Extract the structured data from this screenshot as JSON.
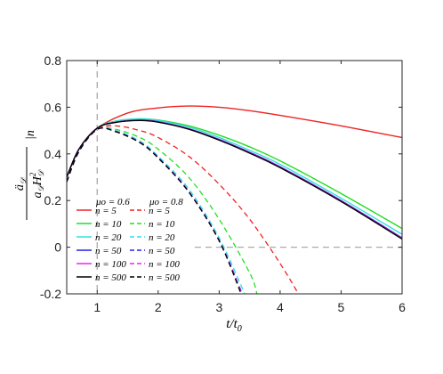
{
  "chart_data": {
    "type": "line",
    "xlabel": "t/t0",
    "ylabel": "ä_D / (a_D H_D²) |n",
    "xlim": [
      0.5,
      6
    ],
    "ylim": [
      -0.2,
      0.8
    ],
    "xticks": [
      1,
      2,
      3,
      4,
      5,
      6
    ],
    "xtick_labels": [
      "1",
      "2",
      "3",
      "4",
      "5",
      "6"
    ],
    "yticks": [
      -0.2,
      0,
      0.2,
      0.4,
      0.6,
      0.8
    ],
    "ytick_labels": [
      "-0.2",
      "0",
      "0.2",
      "0.4",
      "0.6",
      "0.8"
    ],
    "grid": false,
    "legend_position": "bottom-left",
    "legend_group_titles": [
      "μo = 0.6",
      "μo = 0.8"
    ],
    "reference_lines": [
      {
        "orientation": "vertical",
        "x": 1,
        "style": "dashed",
        "color": "#aaaaaa"
      },
      {
        "orientation": "horizontal",
        "y": 0,
        "x_from": 2.6,
        "x_to": 6,
        "style": "dashed",
        "color": "#aaaaaa"
      }
    ],
    "series": [
      {
        "name": "n = 5",
        "group": "μo = 0.6",
        "color": "#ee2222",
        "dash": "solid",
        "x": [
          0.5,
          0.7,
          1.0,
          1.5,
          2.0,
          2.5,
          3.0,
          3.5,
          4.0,
          5.0,
          6.0
        ],
        "y": [
          0.3,
          0.42,
          0.51,
          0.575,
          0.597,
          0.605,
          0.6,
          0.585,
          0.565,
          0.52,
          0.47
        ]
      },
      {
        "name": "n = 10",
        "group": "μo = 0.6",
        "color": "#22dd22",
        "dash": "solid",
        "x": [
          0.5,
          0.7,
          1.0,
          1.3,
          1.7,
          2.0,
          2.5,
          3.0,
          3.5,
          4.0,
          5.0,
          6.0
        ],
        "y": [
          0.3,
          0.42,
          0.51,
          0.54,
          0.55,
          0.545,
          0.52,
          0.48,
          0.43,
          0.37,
          0.23,
          0.08
        ]
      },
      {
        "name": "n = 20",
        "group": "μo = 0.6",
        "color": "#33dddd",
        "dash": "solid",
        "x": [
          0.5,
          0.7,
          1.0,
          1.3,
          1.7,
          2.0,
          2.5,
          3.0,
          3.5,
          4.0,
          5.0,
          6.0
        ],
        "y": [
          0.3,
          0.42,
          0.51,
          0.54,
          0.55,
          0.543,
          0.515,
          0.47,
          0.415,
          0.355,
          0.21,
          0.055
        ]
      },
      {
        "name": "n = 50",
        "group": "μo = 0.6",
        "color": "#2222ee",
        "dash": "solid",
        "x": [
          0.5,
          0.7,
          1.0,
          1.3,
          1.7,
          2.0,
          2.5,
          3.0,
          3.5,
          4.0,
          5.0,
          6.0
        ],
        "y": [
          0.3,
          0.42,
          0.51,
          0.535,
          0.545,
          0.538,
          0.508,
          0.462,
          0.407,
          0.345,
          0.2,
          0.04
        ]
      },
      {
        "name": "n = 100",
        "group": "μo = 0.6",
        "color": "#ee22ee",
        "dash": "solid",
        "x": [
          0.5,
          0.7,
          1.0,
          1.3,
          1.7,
          2.0,
          2.5,
          3.0,
          3.5,
          4.0,
          5.0,
          6.0
        ],
        "y": [
          0.3,
          0.42,
          0.51,
          0.535,
          0.544,
          0.537,
          0.507,
          0.46,
          0.405,
          0.343,
          0.198,
          0.037
        ]
      },
      {
        "name": "n = 500",
        "group": "μo = 0.6",
        "color": "#000000",
        "dash": "solid",
        "x": [
          0.5,
          0.7,
          1.0,
          1.3,
          1.7,
          2.0,
          2.5,
          3.0,
          3.5,
          4.0,
          5.0,
          6.0
        ],
        "y": [
          0.3,
          0.42,
          0.51,
          0.535,
          0.543,
          0.536,
          0.506,
          0.459,
          0.403,
          0.341,
          0.196,
          0.035
        ]
      },
      {
        "name": "n = 5",
        "group": "μo = 0.8",
        "color": "#ee2222",
        "dash": "dashed",
        "x": [
          0.5,
          0.7,
          1.0,
          1.3,
          1.7,
          2.0,
          2.5,
          3.0,
          3.5,
          4.0,
          4.3
        ],
        "y": [
          0.28,
          0.41,
          0.505,
          0.52,
          0.5,
          0.47,
          0.39,
          0.27,
          0.12,
          -0.07,
          -0.2
        ]
      },
      {
        "name": "n = 10",
        "group": "μo = 0.8",
        "color": "#22dd22",
        "dash": "dashed",
        "x": [
          0.5,
          0.7,
          1.0,
          1.3,
          1.7,
          2.0,
          2.5,
          3.0,
          3.5,
          3.62
        ],
        "y": [
          0.28,
          0.41,
          0.505,
          0.505,
          0.47,
          0.42,
          0.3,
          0.12,
          -0.11,
          -0.2
        ]
      },
      {
        "name": "n = 20",
        "group": "μo = 0.8",
        "color": "#33dddd",
        "dash": "dashed",
        "x": [
          0.5,
          0.7,
          1.0,
          1.3,
          1.7,
          2.0,
          2.5,
          3.0,
          3.42
        ],
        "y": [
          0.28,
          0.41,
          0.505,
          0.5,
          0.455,
          0.39,
          0.25,
          0.04,
          -0.2
        ]
      },
      {
        "name": "n = 50",
        "group": "μo = 0.8",
        "color": "#2222ee",
        "dash": "dashed",
        "x": [
          0.5,
          0.7,
          1.0,
          1.3,
          1.7,
          2.0,
          2.5,
          3.0,
          3.38
        ],
        "y": [
          0.28,
          0.41,
          0.505,
          0.497,
          0.45,
          0.385,
          0.24,
          0.03,
          -0.2
        ]
      },
      {
        "name": "n = 100",
        "group": "μo = 0.8",
        "color": "#ee22ee",
        "dash": "dashed",
        "x": [
          0.5,
          0.7,
          1.0,
          1.3,
          1.7,
          2.0,
          2.5,
          3.0,
          3.37
        ],
        "y": [
          0.28,
          0.41,
          0.505,
          0.496,
          0.449,
          0.383,
          0.238,
          0.028,
          -0.2
        ]
      },
      {
        "name": "n = 500",
        "group": "μo = 0.8",
        "color": "#000000",
        "dash": "dashed",
        "x": [
          0.5,
          0.7,
          1.0,
          1.3,
          1.7,
          2.0,
          2.5,
          3.0,
          3.36
        ],
        "y": [
          0.28,
          0.41,
          0.505,
          0.495,
          0.448,
          0.382,
          0.237,
          0.027,
          -0.2
        ]
      }
    ]
  }
}
